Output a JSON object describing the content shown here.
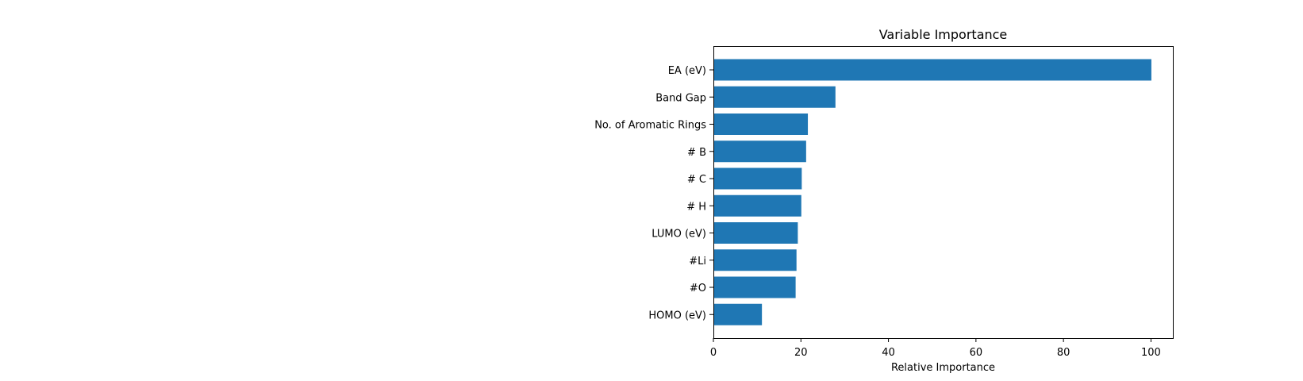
{
  "colors": {
    "bar": "#1f77b4",
    "axis": "#000000",
    "background": "#ffffff"
  },
  "chart_data": {
    "type": "bar",
    "orientation": "horizontal",
    "title": "Variable Importance",
    "xlabel": "Relative Importance",
    "ylabel": "",
    "xlim": [
      0,
      105
    ],
    "xticks": [
      0,
      20,
      40,
      60,
      80,
      100
    ],
    "categories": [
      "EA (eV)",
      "Band Gap",
      "No. of Aromatic Rings",
      "# B",
      "# C",
      "# H",
      "LUMO (eV)",
      "#Li",
      "#O",
      "HOMO (eV)"
    ],
    "values": [
      100,
      27.8,
      21.5,
      21.1,
      20.1,
      20.0,
      19.2,
      18.9,
      18.7,
      11.0
    ],
    "grid": false,
    "legend": "none"
  }
}
